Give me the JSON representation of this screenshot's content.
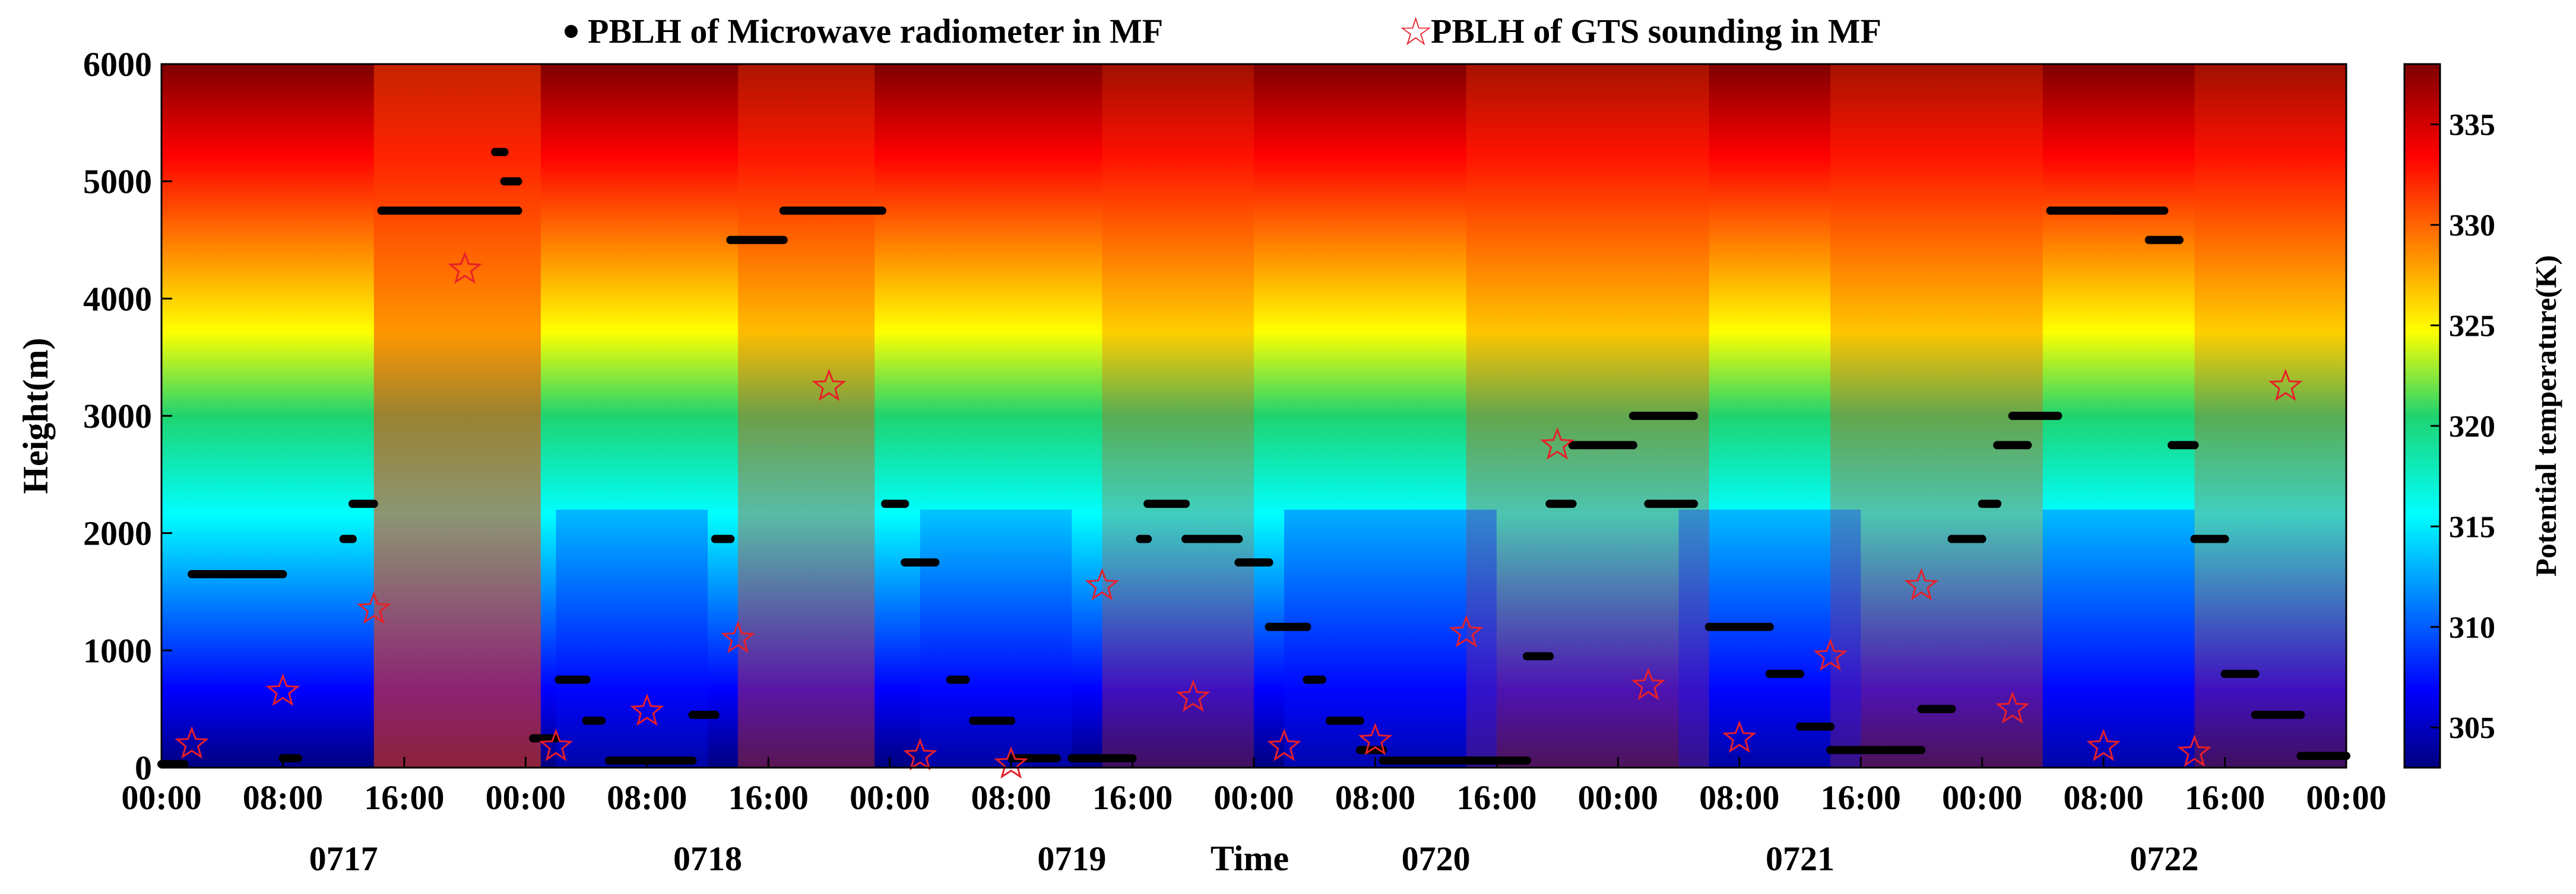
{
  "chart_data": {
    "type": "heatmap",
    "title": "",
    "xlabel": "Time",
    "ylabel": "Height(m)",
    "ylim": [
      0,
      6000
    ],
    "xlim": [
      0,
      144
    ],
    "x_unit": "hours from 0717 00:00",
    "yticks": [
      0,
      1000,
      2000,
      3000,
      4000,
      5000,
      6000
    ],
    "xtick_labels": [
      "00:00",
      "08:00",
      "16:00",
      "00:00",
      "08:00",
      "16:00",
      "00:00",
      "08:00",
      "16:00",
      "00:00",
      "08:00",
      "16:00",
      "00:00",
      "08:00",
      "16:00",
      "00:00",
      "08:00",
      "16:00",
      "00:00"
    ],
    "day_labels": [
      "0717",
      "0718",
      "0719",
      "0720",
      "0721",
      "0722"
    ],
    "colorbar": {
      "label": "Potential temperature(K)",
      "range": [
        303,
        338
      ],
      "ticks": [
        305,
        310,
        315,
        320,
        325,
        330,
        335
      ],
      "colormap": "jet"
    },
    "legend": {
      "placement": "top",
      "entries": [
        {
          "marker": "•",
          "label": "PBLH of Microwave radiometer in MF",
          "color": "#000000"
        },
        {
          "marker": "☆",
          "label": "PBLH of GTS sounding in MF",
          "color": "#e8202a"
        }
      ]
    },
    "series": [
      {
        "name": "PBLH of Microwave radiometer in MF",
        "segments": [
          {
            "x": [
              0,
              1.5
            ],
            "y": 30
          },
          {
            "x": [
              2,
              8
            ],
            "y": 1650
          },
          {
            "x": [
              8,
              9
            ],
            "y": 80
          },
          {
            "x": [
              12,
              12.6
            ],
            "y": 1950
          },
          {
            "x": [
              12.6,
              14
            ],
            "y": 2250
          },
          {
            "x": [
              14.5,
              21.8
            ],
            "y": 4750
          },
          {
            "x": [
              21.8,
              23.5
            ],
            "y": 4750
          },
          {
            "x": [
              22,
              22.6
            ],
            "y": 5250
          },
          {
            "x": [
              22.6,
              23.5
            ],
            "y": 5000
          },
          {
            "x": [
              24.5,
              26
            ],
            "y": 250
          },
          {
            "x": [
              26.2,
              28
            ],
            "y": 750
          },
          {
            "x": [
              28,
              29
            ],
            "y": 400
          },
          {
            "x": [
              29.5,
              35
            ],
            "y": 60
          },
          {
            "x": [
              35,
              36.5
            ],
            "y": 450
          },
          {
            "x": [
              36.5,
              37.5
            ],
            "y": 1950
          },
          {
            "x": [
              37.5,
              41
            ],
            "y": 4500
          },
          {
            "x": [
              41,
              47.5
            ],
            "y": 4750
          },
          {
            "x": [
              47.7,
              49
            ],
            "y": 2250
          },
          {
            "x": [
              49,
              51
            ],
            "y": 1750
          },
          {
            "x": [
              52,
              53
            ],
            "y": 750
          },
          {
            "x": [
              53.5,
              56
            ],
            "y": 400
          },
          {
            "x": [
              56,
              59
            ],
            "y": 80
          },
          {
            "x": [
              60,
              64
            ],
            "y": 80
          },
          {
            "x": [
              64.5,
              65
            ],
            "y": 1950
          },
          {
            "x": [
              65,
              67.5
            ],
            "y": 2250
          },
          {
            "x": [
              67.5,
              71
            ],
            "y": 1950
          },
          {
            "x": [
              71,
              73
            ],
            "y": 1750
          },
          {
            "x": [
              73,
              75.5
            ],
            "y": 1200
          },
          {
            "x": [
              75.5,
              76.5
            ],
            "y": 750
          },
          {
            "x": [
              77,
              79
            ],
            "y": 400
          },
          {
            "x": [
              79,
              80.5
            ],
            "y": 150
          },
          {
            "x": [
              80.5,
              90
            ],
            "y": 60
          },
          {
            "x": [
              90,
              91.5
            ],
            "y": 950
          },
          {
            "x": [
              91.5,
              93
            ],
            "y": 2250
          },
          {
            "x": [
              93,
              97
            ],
            "y": 2750
          },
          {
            "x": [
              97,
              101
            ],
            "y": 3000
          },
          {
            "x": [
              98,
              101
            ],
            "y": 2250
          },
          {
            "x": [
              102,
              106
            ],
            "y": 1200
          },
          {
            "x": [
              106,
              108
            ],
            "y": 800
          },
          {
            "x": [
              108,
              110
            ],
            "y": 350
          },
          {
            "x": [
              110,
              116
            ],
            "y": 150
          },
          {
            "x": [
              116,
              118
            ],
            "y": 500
          },
          {
            "x": [
              118,
              120
            ],
            "y": 1950
          },
          {
            "x": [
              120,
              121
            ],
            "y": 2250
          },
          {
            "x": [
              121,
              123
            ],
            "y": 2750
          },
          {
            "x": [
              122,
              125
            ],
            "y": 3000
          },
          {
            "x": [
              124.5,
              132
            ],
            "y": 4750
          },
          {
            "x": [
              131,
              133
            ],
            "y": 4500
          },
          {
            "x": [
              132.5,
              134
            ],
            "y": 2750
          },
          {
            "x": [
              134,
              136
            ],
            "y": 1950
          },
          {
            "x": [
              136,
              138
            ],
            "y": 800
          },
          {
            "x": [
              138,
              141
            ],
            "y": 450
          },
          {
            "x": [
              141,
              144
            ],
            "y": 100
          }
        ]
      },
      {
        "name": "PBLH of GTS sounding in MF",
        "type": "scatter",
        "x": [
          2,
          8,
          14,
          20,
          26,
          32,
          38,
          44,
          50,
          56,
          62,
          68,
          74,
          80,
          86,
          92,
          98,
          104,
          110,
          116,
          122,
          128,
          134,
          140
        ],
        "y": [
          200,
          650,
          1350,
          4250,
          180,
          480,
          1100,
          3250,
          100,
          30,
          1550,
          600,
          180,
          230,
          1150,
          2750,
          700,
          250,
          950,
          1550,
          500,
          180,
          130,
          3250
        ]
      }
    ]
  }
}
